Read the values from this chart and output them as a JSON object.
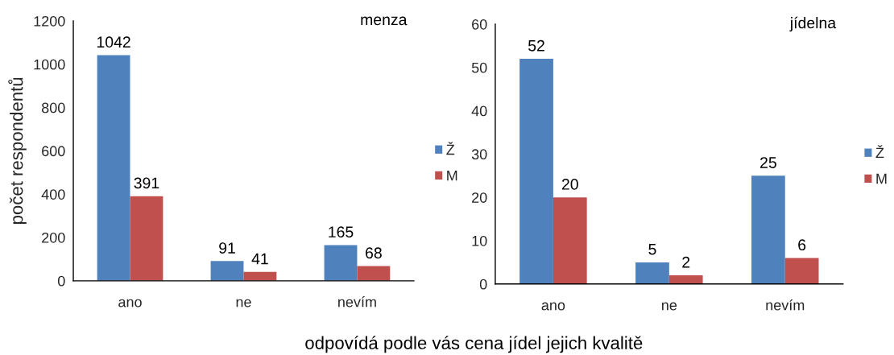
{
  "chart_data": [
    {
      "type": "bar",
      "title": "menza",
      "ylabel": "počet respondentů",
      "xlabel": "odpovídá podle vás cena jídel jejich kvalitě",
      "categories": [
        "ano",
        "ne",
        "nevím"
      ],
      "series": [
        {
          "name": "Ž",
          "color": "#4f81bd",
          "values": [
            1042,
            91,
            165
          ]
        },
        {
          "name": "M",
          "color": "#c0504d",
          "values": [
            391,
            41,
            68
          ]
        }
      ],
      "ylim": [
        0,
        1200
      ],
      "yticks": [
        0,
        200,
        400,
        600,
        800,
        1000,
        1200
      ],
      "data_labels": true,
      "legend": "right"
    },
    {
      "type": "bar",
      "title": "jídelna",
      "categories": [
        "ano",
        "ne",
        "nevím"
      ],
      "series": [
        {
          "name": "Ž",
          "color": "#4f81bd",
          "values": [
            52,
            5,
            25
          ]
        },
        {
          "name": "M",
          "color": "#c0504d",
          "values": [
            20,
            2,
            6
          ]
        }
      ],
      "ylim": [
        0,
        60
      ],
      "yticks": [
        0,
        10,
        20,
        30,
        40,
        50,
        60
      ],
      "data_labels": true,
      "legend": "right"
    }
  ]
}
